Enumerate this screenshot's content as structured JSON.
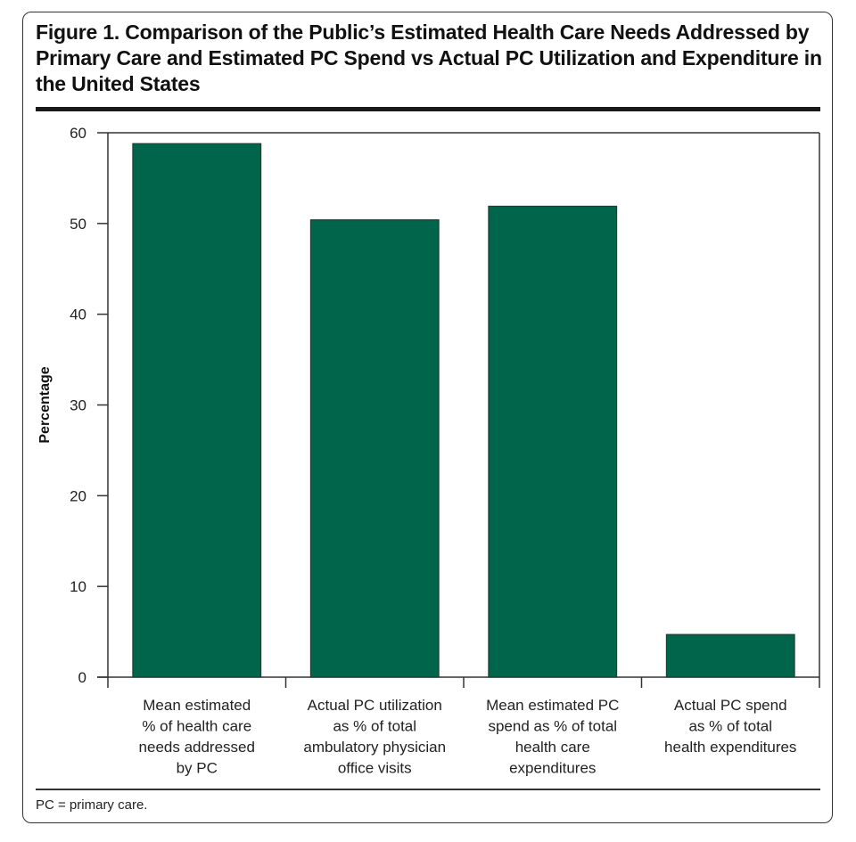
{
  "figure": {
    "title": "Figure 1. Comparison of the Public’s Estimated Health Care Needs Addressed by Primary Care and Estimated PC Spend vs Actual PC Utilization and Expenditure in the United States",
    "footnote": "PC = primary care."
  },
  "colors": {
    "bar": "#00654a",
    "bar_edge": "#1f3d33",
    "axis": "#333333"
  },
  "chart_data": {
    "type": "bar",
    "title": "Figure 1. Comparison of the Public’s Estimated Health Care Needs Addressed by Primary Care and Estimated PC Spend vs Actual PC Utilization and Expenditure in the United States",
    "xlabel": "",
    "ylabel": "Percentage",
    "ylim": [
      0,
      60
    ],
    "yticks": [
      0,
      10,
      20,
      30,
      40,
      50,
      60
    ],
    "grid": false,
    "categories": [
      [
        "Mean estimated",
        "% of health care",
        "needs addressed",
        "by PC"
      ],
      [
        "Actual PC utilization",
        "as % of total",
        "ambulatory physician",
        "office visits"
      ],
      [
        "Mean estimated PC",
        "spend as % of total",
        "health care",
        "expenditures"
      ],
      [
        "Actual PC spend",
        "as % of total",
        "health expenditures"
      ]
    ],
    "values": [
      58.8,
      50.4,
      51.9,
      4.7
    ]
  }
}
